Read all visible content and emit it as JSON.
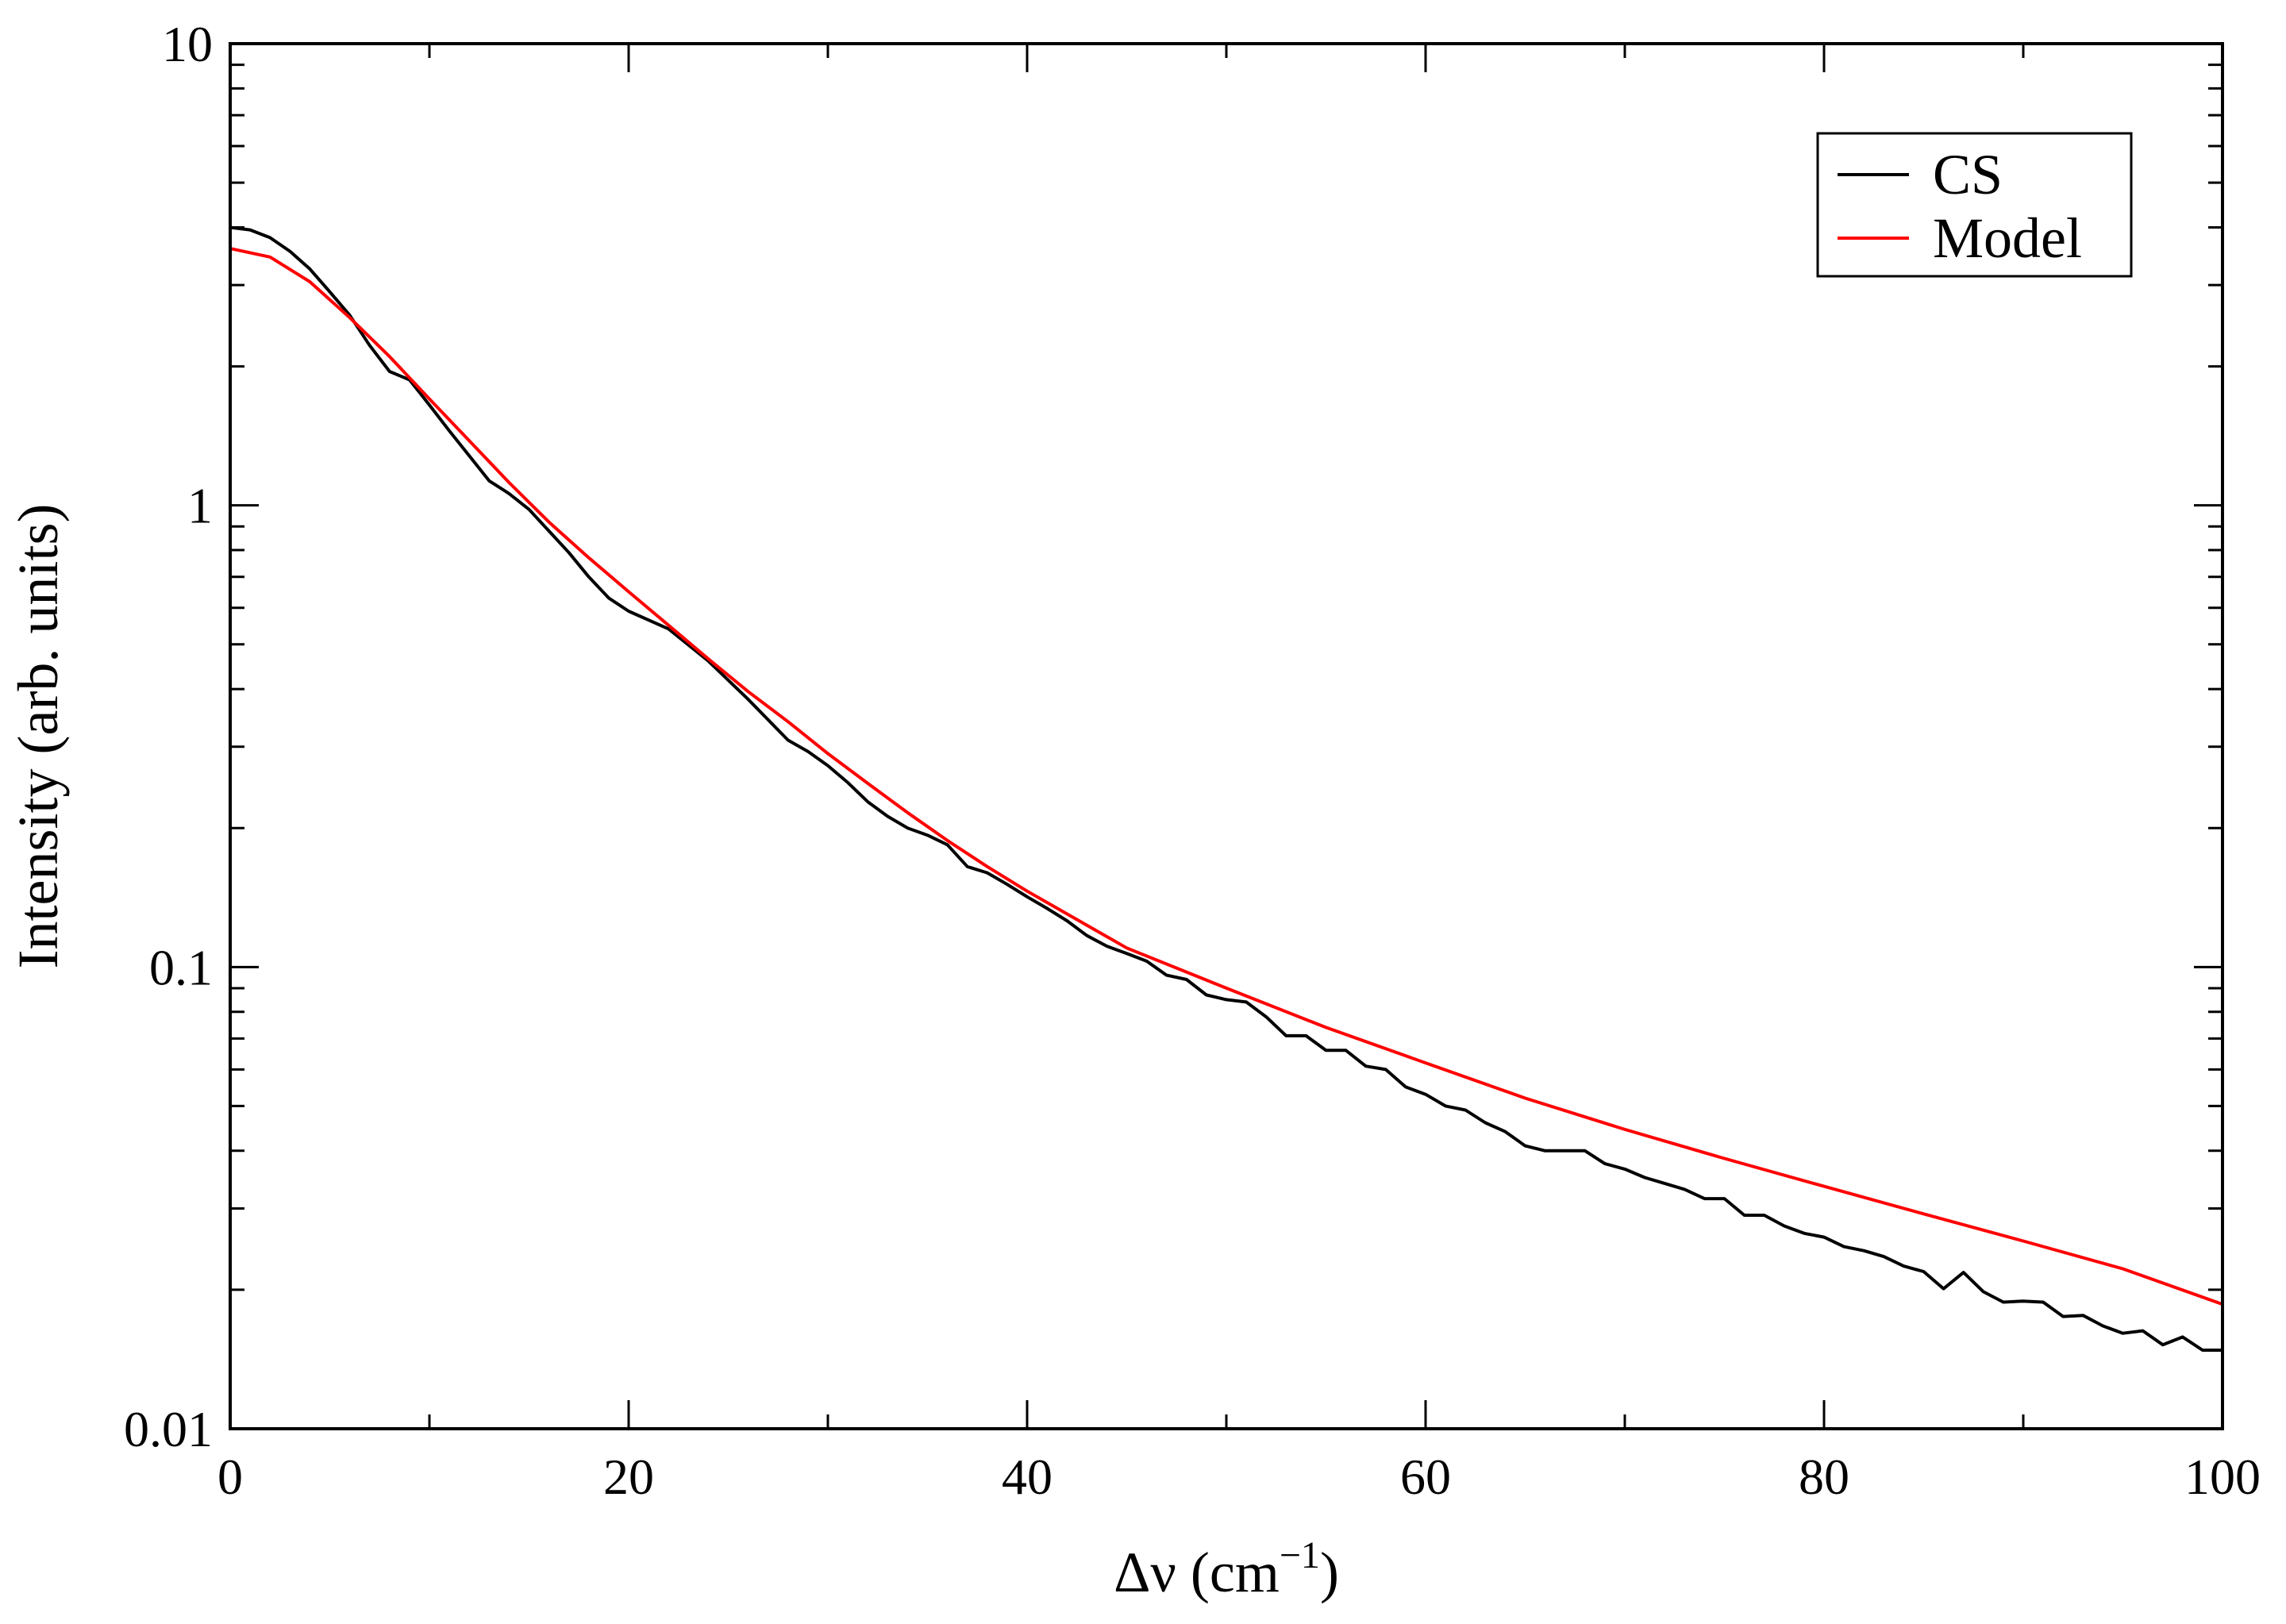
{
  "chart_data": {
    "type": "line",
    "xlabel": {
      "main": "Δν (cm",
      "sup": "−1",
      "end": ")"
    },
    "ylabel": "Intensity (arb. units)",
    "xlim": [
      0,
      100
    ],
    "ylim": [
      0.01,
      10
    ],
    "yscale": "log",
    "x_major_ticks": [
      0,
      20,
      40,
      60,
      80,
      100
    ],
    "x_tick_labels": [
      "0",
      "20",
      "40",
      "60",
      "80",
      "100"
    ],
    "x_minor_step": 10,
    "y_major_ticks": [
      0.01,
      0.1,
      1,
      10
    ],
    "y_tick_labels": [
      "0.01",
      "0.1",
      "1",
      "10"
    ],
    "grid": false,
    "legend_position": "top-right",
    "series": [
      {
        "name": "CS",
        "color": "#000000",
        "x": [
          0,
          1,
          2,
          3,
          4,
          5,
          6,
          7,
          8,
          9,
          10,
          11,
          12,
          13,
          14,
          15,
          16,
          17,
          18,
          19,
          20,
          22,
          24,
          26,
          28,
          29,
          30,
          31,
          32,
          33,
          34,
          35,
          36,
          37,
          38,
          39,
          40,
          41,
          42,
          43,
          44,
          45,
          46,
          47,
          48,
          49,
          50,
          51,
          52,
          53,
          54,
          55,
          56,
          57,
          58,
          59,
          60,
          61,
          62,
          63,
          64,
          65,
          66,
          67,
          68,
          69,
          70,
          71,
          72,
          73,
          74,
          75,
          76,
          77,
          78,
          79,
          80,
          81,
          82,
          83,
          84,
          85,
          86,
          87,
          88,
          89,
          90,
          91,
          92,
          93,
          94,
          95,
          96,
          97,
          98,
          99,
          100
        ],
        "y": [
          4.0,
          3.95,
          3.8,
          3.55,
          3.25,
          2.9,
          2.58,
          2.22,
          1.95,
          1.87,
          1.65,
          1.45,
          1.28,
          1.13,
          1.06,
          0.98,
          0.88,
          0.79,
          0.7,
          0.63,
          0.59,
          0.54,
          0.46,
          0.38,
          0.31,
          0.293,
          0.273,
          0.251,
          0.228,
          0.212,
          0.2,
          0.193,
          0.184,
          0.165,
          0.16,
          0.151,
          0.142,
          0.134,
          0.126,
          0.117,
          0.111,
          0.107,
          0.103,
          0.096,
          0.094,
          0.087,
          0.085,
          0.084,
          0.078,
          0.071,
          0.071,
          0.066,
          0.066,
          0.061,
          0.06,
          0.055,
          0.053,
          0.05,
          0.049,
          0.046,
          0.044,
          0.041,
          0.04,
          0.04,
          0.04,
          0.0375,
          0.0365,
          0.035,
          0.034,
          0.033,
          0.0315,
          0.0315,
          0.029,
          0.029,
          0.0275,
          0.0265,
          0.026,
          0.0248,
          0.0243,
          0.0236,
          0.0225,
          0.0219,
          0.0201,
          0.0218,
          0.0198,
          0.0188,
          0.0189,
          0.0188,
          0.0175,
          0.0176,
          0.0167,
          0.0161,
          0.0163,
          0.0152,
          0.0158,
          0.0148,
          0.0148
        ]
      },
      {
        "name": "Model",
        "color": "#ff0000",
        "x": [
          0,
          2,
          4,
          6,
          8,
          10,
          12,
          14,
          16,
          18,
          20,
          22,
          24,
          26,
          28,
          30,
          32,
          34,
          36,
          38,
          40,
          45,
          50,
          55,
          60,
          65,
          70,
          75,
          80,
          85,
          90,
          95,
          100
        ],
        "y": [
          3.6,
          3.45,
          3.05,
          2.55,
          2.1,
          1.7,
          1.38,
          1.12,
          0.92,
          0.77,
          0.65,
          0.55,
          0.465,
          0.395,
          0.34,
          0.29,
          0.25,
          0.216,
          0.188,
          0.165,
          0.146,
          0.11,
          0.09,
          0.074,
          0.062,
          0.052,
          0.0445,
          0.0385,
          0.0335,
          0.0292,
          0.0255,
          0.0222,
          0.0186
        ]
      }
    ]
  }
}
